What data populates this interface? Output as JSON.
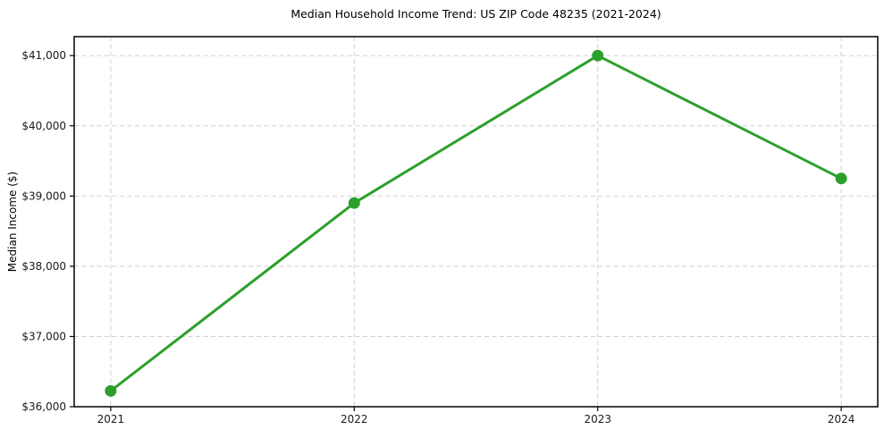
{
  "chart_data": {
    "type": "line",
    "title": "Median Household Income Trend: US ZIP Code 48235 (2021-2024)",
    "ylabel": "Median Income ($)",
    "xlabel": "",
    "x": [
      2021,
      2022,
      2023,
      2024
    ],
    "x_tick_labels": [
      "2021",
      "2022",
      "2023",
      "2024"
    ],
    "values": [
      36225,
      38900,
      41000,
      39250
    ],
    "y_ticks": [
      36000,
      37000,
      38000,
      39000,
      40000,
      41000
    ],
    "y_tick_labels": [
      "$36,000",
      "$37,000",
      "$38,000",
      "$39,000",
      "$40,000",
      "$41,000"
    ],
    "xlim": [
      2020.85,
      2024.15
    ],
    "ylim": [
      36000,
      41270
    ],
    "grid": true,
    "grid_style": "dashed",
    "legend": "none",
    "line_color": "#2ca02c",
    "marker_color": "#2ca02c",
    "grid_color": "#cccccc",
    "spine_color": "#000000",
    "text_color": "#1a1a1a",
    "background": "#ffffff"
  }
}
